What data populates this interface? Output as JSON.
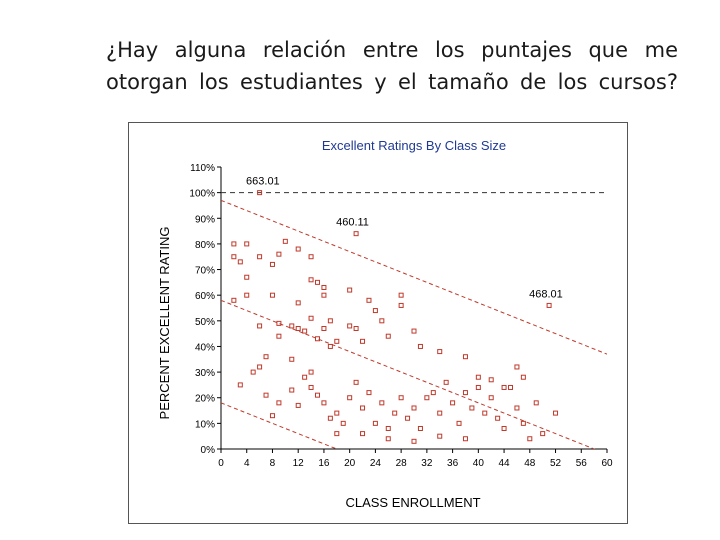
{
  "slide": {
    "title": "¿Hay alguna relación entre los puntajes que me otorgan los estudiantes y el tamaño de los cursos?"
  },
  "colors": {
    "title_text": "#1a1a1a",
    "chart_title": "#1f3a93",
    "series": "#c0392b",
    "axis": "#000000"
  },
  "chart_data": {
    "type": "scatter",
    "title": "Excellent Ratings By Class Size",
    "xlabel": "CLASS ENROLLMENT",
    "ylabel": "PERCENT EXCELLENT RATING",
    "xlim": [
      0,
      60
    ],
    "ylim": [
      0,
      110
    ],
    "x_ticks": [
      "0",
      "4",
      "8",
      "12",
      "16",
      "20",
      "24",
      "28",
      "32",
      "36",
      "40",
      "44",
      "48",
      "52",
      "56",
      "60"
    ],
    "y_ticks": [
      "0%",
      "10%",
      "20%",
      "30%",
      "40%",
      "50%",
      "60%",
      "70%",
      "80%",
      "90%",
      "100%",
      "110%"
    ],
    "reference_line": {
      "y": 100
    },
    "trend_lines": [
      {
        "x": [
          0,
          60
        ],
        "y": [
          97,
          37
        ]
      },
      {
        "x": [
          0,
          60
        ],
        "y": [
          58,
          -2
        ]
      },
      {
        "x": [
          0,
          60
        ],
        "y": [
          18,
          -42
        ]
      }
    ],
    "annotations": [
      {
        "text": "663.01",
        "x": 7,
        "y": 100
      },
      {
        "text": "460.11",
        "x": 21,
        "y": 84
      },
      {
        "text": "468.01",
        "x": 51,
        "y": 56
      }
    ],
    "points": [
      [
        6,
        100
      ],
      [
        21,
        84
      ],
      [
        51,
        56
      ],
      [
        2,
        80
      ],
      [
        2,
        75
      ],
      [
        3,
        73
      ],
      [
        4,
        80
      ],
      [
        4,
        67
      ],
      [
        6,
        75
      ],
      [
        8,
        72
      ],
      [
        9,
        76
      ],
      [
        10,
        81
      ],
      [
        12,
        78
      ],
      [
        14,
        75
      ],
      [
        15,
        65
      ],
      [
        16,
        63
      ],
      [
        2,
        58
      ],
      [
        4,
        60
      ],
      [
        6,
        48
      ],
      [
        7,
        36
      ],
      [
        8,
        60
      ],
      [
        9,
        49
      ],
      [
        9,
        44
      ],
      [
        11,
        48
      ],
      [
        11,
        35
      ],
      [
        12,
        47
      ],
      [
        12,
        57
      ],
      [
        13,
        46
      ],
      [
        14,
        66
      ],
      [
        14,
        51
      ],
      [
        15,
        43
      ],
      [
        16,
        60
      ],
      [
        16,
        47
      ],
      [
        17,
        50
      ],
      [
        17,
        40
      ],
      [
        18,
        42
      ],
      [
        20,
        62
      ],
      [
        20,
        48
      ],
      [
        21,
        47
      ],
      [
        22,
        42
      ],
      [
        23,
        58
      ],
      [
        24,
        54
      ],
      [
        25,
        50
      ],
      [
        26,
        44
      ],
      [
        28,
        60
      ],
      [
        28,
        56
      ],
      [
        30,
        46
      ],
      [
        31,
        40
      ],
      [
        34,
        38
      ],
      [
        38,
        36
      ],
      [
        40,
        28
      ],
      [
        42,
        27
      ],
      [
        44,
        24
      ],
      [
        46,
        32
      ],
      [
        47,
        28
      ],
      [
        3,
        25
      ],
      [
        5,
        30
      ],
      [
        6,
        32
      ],
      [
        7,
        21
      ],
      [
        8,
        13
      ],
      [
        9,
        18
      ],
      [
        11,
        23
      ],
      [
        12,
        17
      ],
      [
        13,
        28
      ],
      [
        14,
        24
      ],
      [
        15,
        21
      ],
      [
        16,
        18
      ],
      [
        17,
        12
      ],
      [
        18,
        14
      ],
      [
        19,
        10
      ],
      [
        20,
        20
      ],
      [
        21,
        26
      ],
      [
        22,
        16
      ],
      [
        23,
        22
      ],
      [
        24,
        10
      ],
      [
        25,
        18
      ],
      [
        26,
        8
      ],
      [
        27,
        14
      ],
      [
        28,
        20
      ],
      [
        29,
        12
      ],
      [
        30,
        16
      ],
      [
        31,
        8
      ],
      [
        32,
        20
      ],
      [
        33,
        22
      ],
      [
        34,
        14
      ],
      [
        35,
        26
      ],
      [
        36,
        18
      ],
      [
        37,
        10
      ],
      [
        38,
        22
      ],
      [
        39,
        16
      ],
      [
        40,
        24
      ],
      [
        41,
        14
      ],
      [
        42,
        20
      ],
      [
        43,
        12
      ],
      [
        44,
        8
      ],
      [
        45,
        24
      ],
      [
        46,
        16
      ],
      [
        47,
        10
      ],
      [
        48,
        4
      ],
      [
        49,
        18
      ],
      [
        50,
        6
      ],
      [
        52,
        14
      ],
      [
        14,
        30
      ],
      [
        18,
        6
      ],
      [
        22,
        6
      ],
      [
        26,
        4
      ],
      [
        30,
        3
      ],
      [
        34,
        5
      ],
      [
        38,
        4
      ]
    ]
  }
}
